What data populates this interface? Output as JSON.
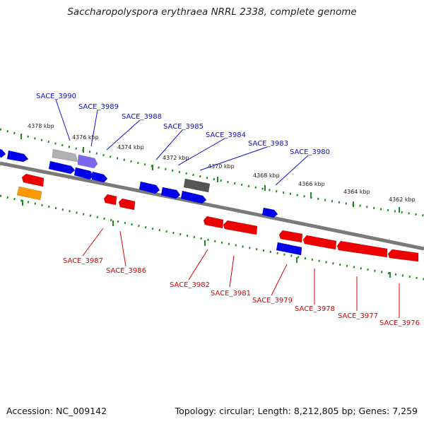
{
  "title": "Saccharopolyspora erythraea NRRL 2338, complete genome",
  "footer": {
    "accession": "Accession: NC_009142",
    "summary": "Topology: circular; Length: 8,212,805 bp; Genes: 7,259"
  },
  "colors": {
    "backbone": "#7a7a7a",
    "ruler_dots": "#1f8a1f",
    "forward_gene": "#0000ee",
    "reverse_gene": "#ee0000",
    "forward_label": "#1010cc",
    "reverse_label": "#dd0000",
    "gray_gene": "#b0b0b0",
    "dark_gene": "#555555",
    "purple_gene": "#7b68ee",
    "orange_gene": "#ff9900"
  },
  "kbp_ticks": [
    "4378 kbp",
    "4376 kbp",
    "4374 kbp",
    "4372 kbp",
    "4370 kbp",
    "4368 kbp",
    "4366 kbp",
    "4364 kbp",
    "4362 kbp"
  ],
  "forward_labels": [
    "SACE_3990",
    "SACE_3989",
    "SACE_3988",
    "SACE_3985",
    "SACE_3984",
    "SACE_3983",
    "SACE_3980"
  ],
  "reverse_labels": [
    "SACE_3987",
    "SACE_3986",
    "SACE_3982",
    "SACE_3981",
    "SACE_3979",
    "SACE_3978",
    "SACE_3977",
    "SACE_3976"
  ]
}
